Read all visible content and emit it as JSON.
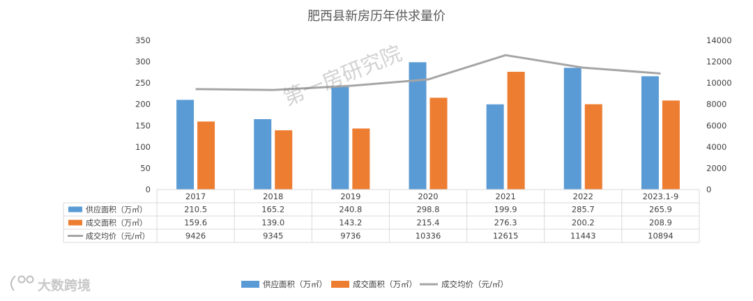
{
  "chart_data": {
    "type": "bar",
    "title": "肥西县新房历年供求量价",
    "categories": [
      "2017",
      "2018",
      "2019",
      "2020",
      "2021",
      "2022",
      "2023.1-9"
    ],
    "series": [
      {
        "name": "供应面积（万㎡）",
        "type": "bar",
        "axis": "left",
        "color": "#5b9bd5",
        "values": [
          210.5,
          165.2,
          240.8,
          298.8,
          199.9,
          285.7,
          265.9
        ],
        "labels": [
          "210.5",
          "165.2",
          "240.8",
          "298.8",
          "199.9",
          "285.7",
          "265.9"
        ]
      },
      {
        "name": "成交面积（万㎡）",
        "type": "bar",
        "axis": "left",
        "color": "#ed7d31",
        "values": [
          159.6,
          139.0,
          143.2,
          215.4,
          276.3,
          200.2,
          208.9
        ],
        "labels": [
          "159.6",
          "139.0",
          "143.2",
          "215.4",
          "276.3",
          "200.2",
          "208.9"
        ]
      },
      {
        "name": "成交均价（元/㎡）",
        "type": "line",
        "axis": "right",
        "color": "#a5a5a5",
        "values": [
          9426,
          9345,
          9736,
          10336,
          12615,
          11443,
          10894
        ],
        "labels": [
          "9426",
          "9345",
          "9736",
          "10336",
          "12615",
          "11443",
          "10894"
        ]
      }
    ],
    "y_left": {
      "min": 0,
      "max": 350,
      "ticks": [
        "0",
        "50",
        "100",
        "150",
        "200",
        "250",
        "300",
        "350"
      ]
    },
    "y_right": {
      "min": 0,
      "max": 14000,
      "ticks": [
        "0",
        "2000",
        "4000",
        "6000",
        "8000",
        "10000",
        "12000",
        "14000"
      ]
    },
    "grid": false,
    "legend": "bottom-center",
    "data_table": true
  },
  "watermark": "第一房研究院",
  "brand": {
    "logo_text": "大数跨境"
  }
}
